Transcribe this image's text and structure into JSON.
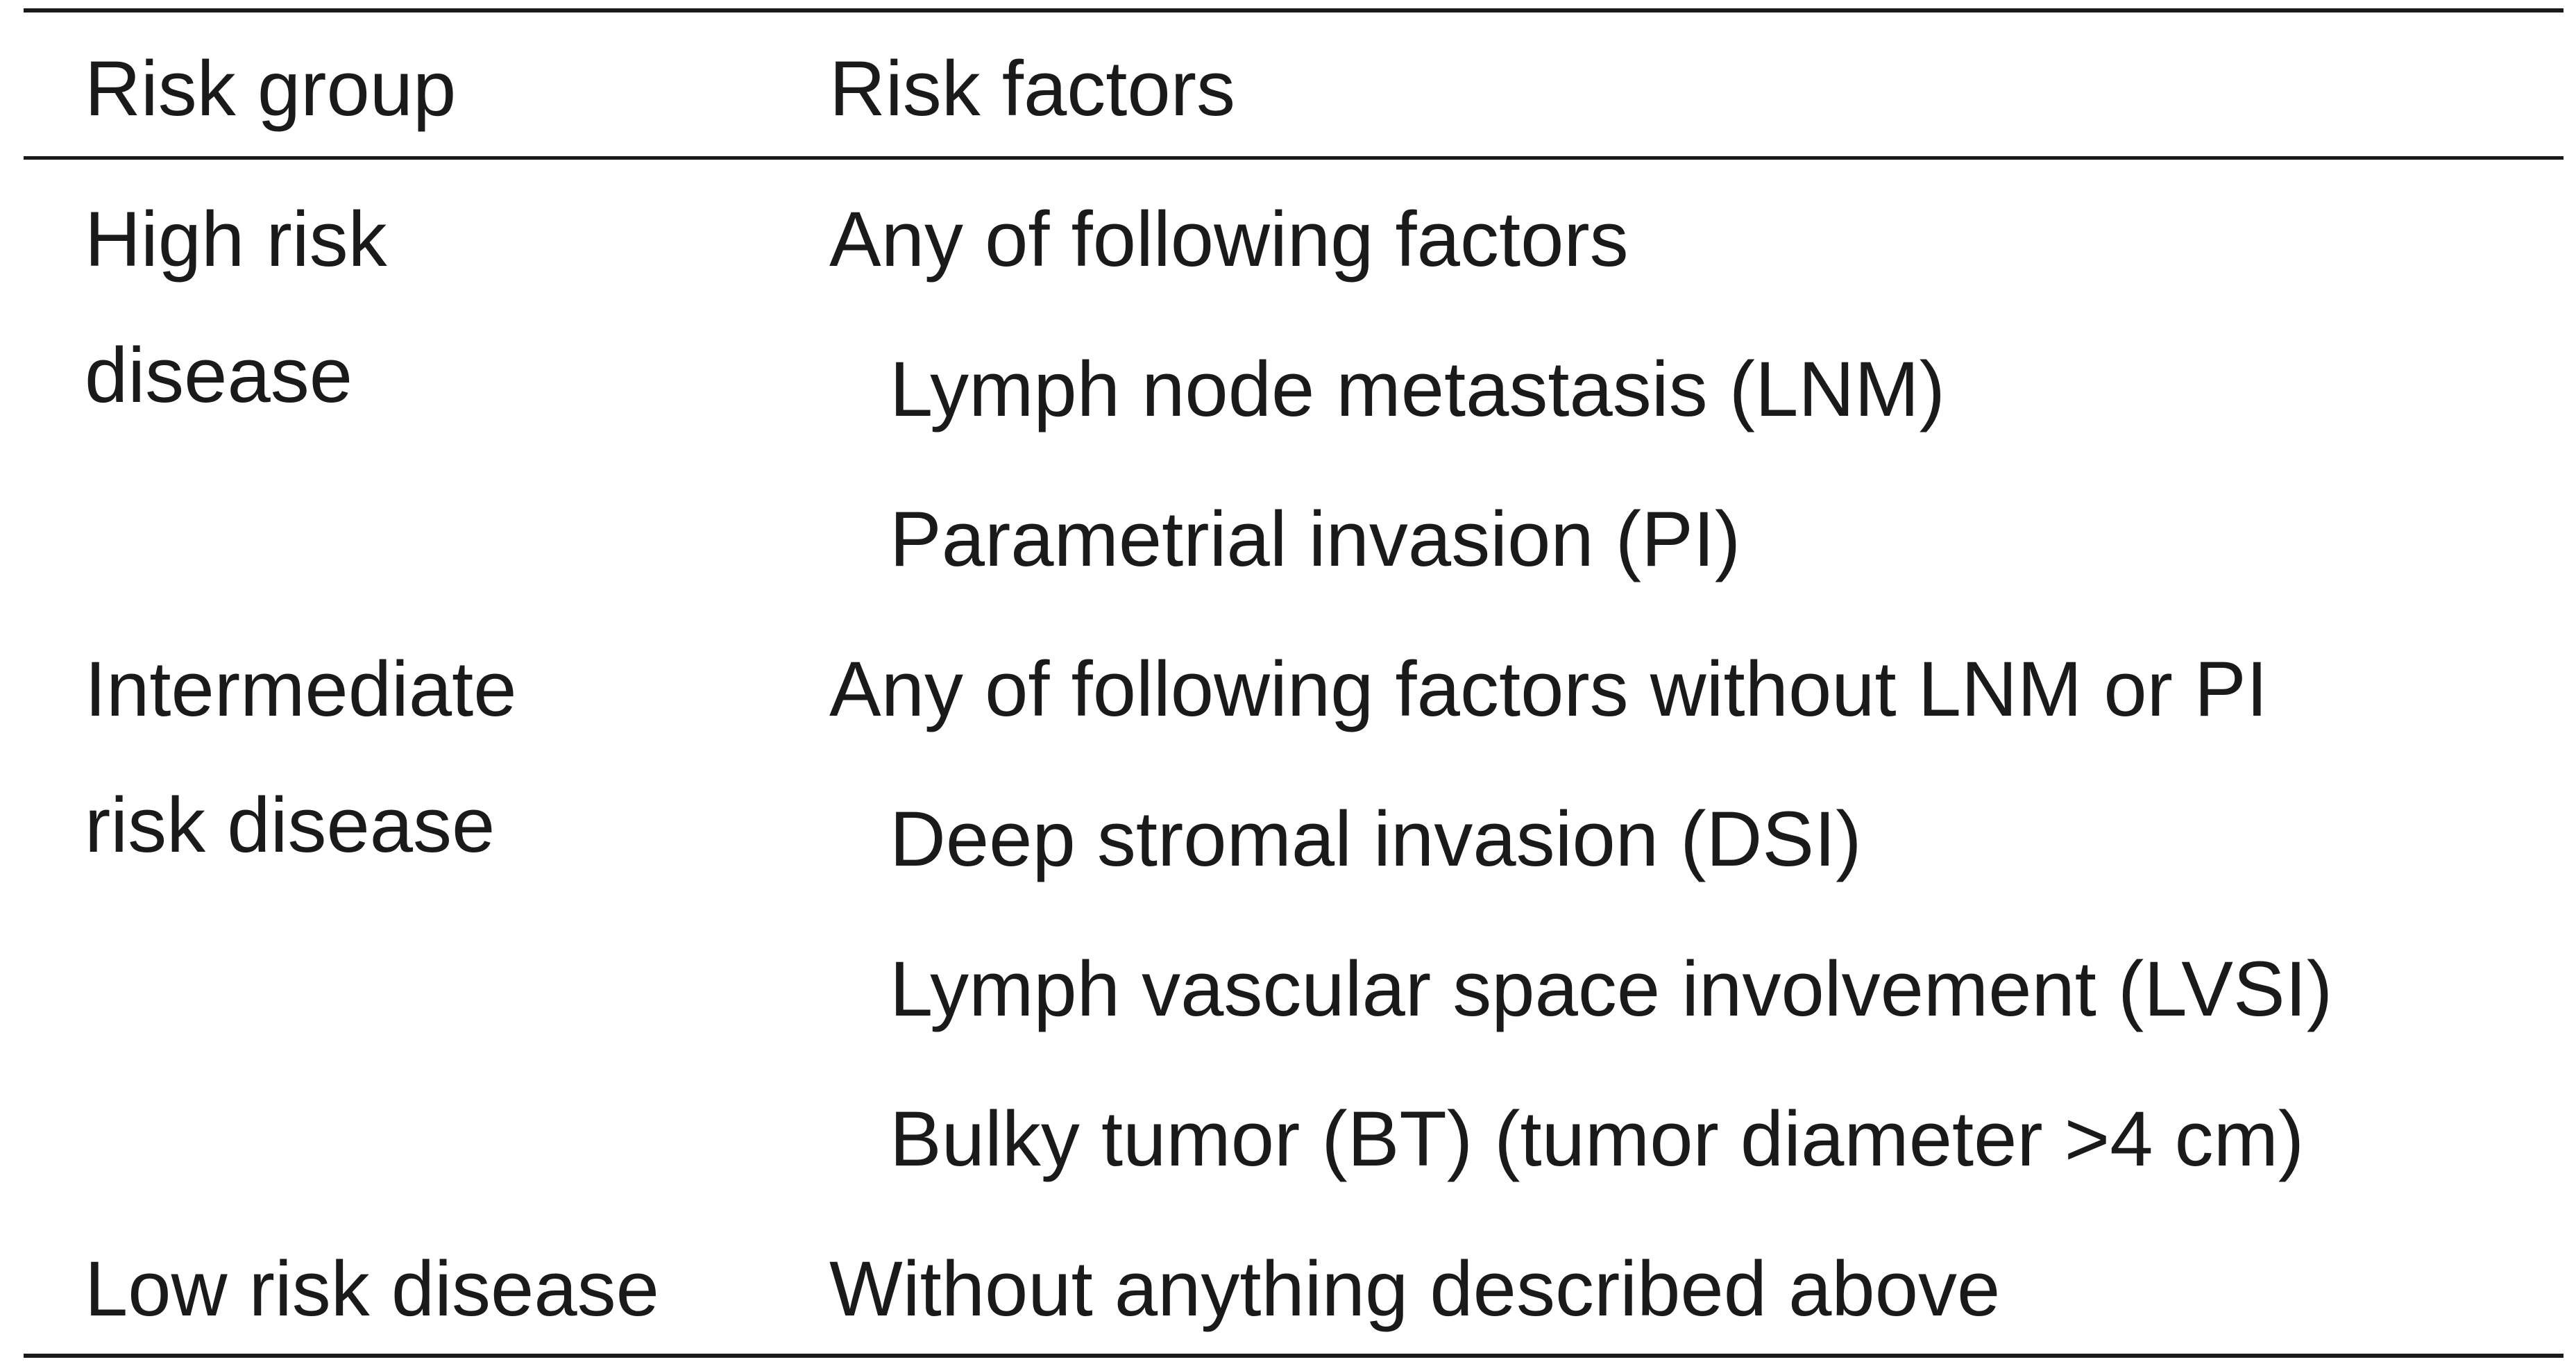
{
  "table": {
    "headers": {
      "group": "Risk group",
      "factors": "Risk factors"
    },
    "rows": [
      {
        "group_lines": [
          "High risk",
          "disease"
        ],
        "lead": "Any of following factors",
        "factors": [
          "Lymph node metastasis (LNM)",
          "Parametrial invasion (PI)"
        ]
      },
      {
        "group_lines": [
          "Intermediate",
          "risk disease"
        ],
        "lead": "Any of following factors without LNM or PI",
        "factors": [
          "Deep stromal invasion (DSI)",
          "Lymph vascular space involvement (LVSI)",
          "Bulky tumor (BT) (tumor diameter >4 cm)"
        ]
      },
      {
        "group_lines": [
          "Low risk disease"
        ],
        "lead": "Without anything described above",
        "factors": []
      }
    ]
  }
}
